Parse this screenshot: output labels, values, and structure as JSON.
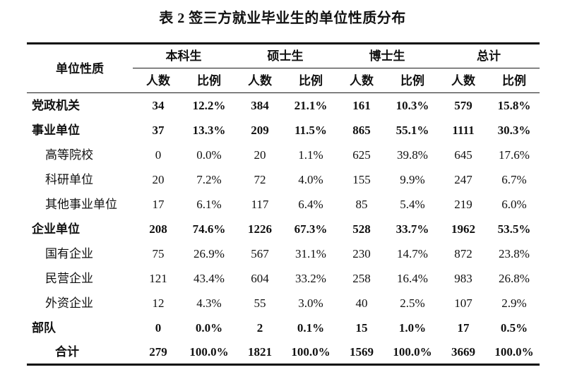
{
  "title": "表 2 签三方就业毕业生的单位性质分布",
  "table": {
    "row_header_label": "单位性质",
    "groups": [
      {
        "label": "本科生"
      },
      {
        "label": "硕士生"
      },
      {
        "label": "博士生"
      },
      {
        "label": "总计"
      }
    ],
    "subheaders": {
      "count": "人数",
      "ratio": "比例"
    },
    "rows": [
      {
        "label": "党政机关",
        "style": "bold",
        "values": [
          "34",
          "12.2%",
          "384",
          "21.1%",
          "161",
          "10.3%",
          "579",
          "15.8%"
        ]
      },
      {
        "label": "事业单位",
        "style": "bold",
        "values": [
          "37",
          "13.3%",
          "209",
          "11.5%",
          "865",
          "55.1%",
          "1111",
          "30.3%"
        ]
      },
      {
        "label": "高等院校",
        "style": "sub",
        "values": [
          "0",
          "0.0%",
          "20",
          "1.1%",
          "625",
          "39.8%",
          "645",
          "17.6%"
        ]
      },
      {
        "label": "科研单位",
        "style": "sub",
        "values": [
          "20",
          "7.2%",
          "72",
          "4.0%",
          "155",
          "9.9%",
          "247",
          "6.7%"
        ]
      },
      {
        "label": "其他事业单位",
        "style": "sub",
        "values": [
          "17",
          "6.1%",
          "117",
          "6.4%",
          "85",
          "5.4%",
          "219",
          "6.0%"
        ]
      },
      {
        "label": "企业单位",
        "style": "bold",
        "values": [
          "208",
          "74.6%",
          "1226",
          "67.3%",
          "528",
          "33.7%",
          "1962",
          "53.5%"
        ]
      },
      {
        "label": "国有企业",
        "style": "sub",
        "values": [
          "75",
          "26.9%",
          "567",
          "31.1%",
          "230",
          "14.7%",
          "872",
          "23.8%"
        ]
      },
      {
        "label": "民营企业",
        "style": "sub",
        "values": [
          "121",
          "43.4%",
          "604",
          "33.2%",
          "258",
          "16.4%",
          "983",
          "26.8%"
        ]
      },
      {
        "label": "外资企业",
        "style": "sub",
        "values": [
          "12",
          "4.3%",
          "55",
          "3.0%",
          "40",
          "2.5%",
          "107",
          "2.9%"
        ]
      },
      {
        "label": "部队",
        "style": "bold",
        "values": [
          "0",
          "0.0%",
          "2",
          "0.1%",
          "15",
          "1.0%",
          "17",
          "0.5%"
        ]
      },
      {
        "label": "合计",
        "style": "total",
        "values": [
          "279",
          "100.0%",
          "1821",
          "100.0%",
          "1569",
          "100.0%",
          "3669",
          "100.0%"
        ]
      }
    ]
  },
  "colors": {
    "text": "#111111",
    "rule": "#0a0a0a",
    "background": "#ffffff"
  }
}
